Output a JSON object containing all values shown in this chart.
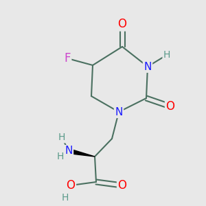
{
  "background_color": "#e8e8e8",
  "bond_color": "#4a7060",
  "bond_width": 1.5,
  "figsize": [
    3.0,
    3.0
  ],
  "dpi": 100,
  "colors": {
    "N": "#1a1aff",
    "O": "#ff0000",
    "F": "#cc44cc",
    "H": "#5a9a8a",
    "bond": "#4a7060",
    "wedge": "#000000"
  }
}
